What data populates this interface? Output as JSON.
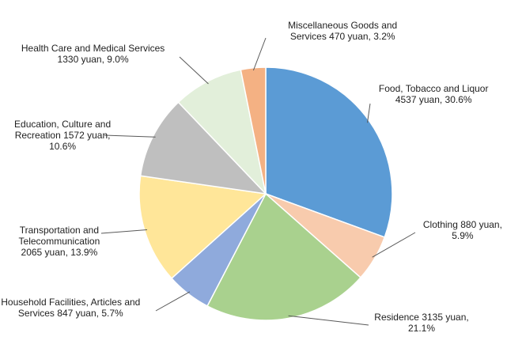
{
  "chart_data": {
    "type": "pie",
    "title": "",
    "slices": [
      {
        "id": "food",
        "lines": [
          "Food, Tobacco and Liquor",
          "4537 yuan,  30.6%"
        ],
        "value": 4537,
        "percent": 30.6,
        "color": "#5b9bd5"
      },
      {
        "id": "clothing",
        "lines": [
          "Clothing 880 yuan,",
          "5.9%"
        ],
        "value": 880,
        "percent": 5.9,
        "color": "#f8cbad"
      },
      {
        "id": "residence",
        "lines": [
          "Residence 3135 yuan,",
          "21.1%"
        ],
        "value": 3135,
        "percent": 21.1,
        "color": "#a9d18e"
      },
      {
        "id": "household",
        "lines": [
          "Household Facilities, Articles and",
          "Services 847 yuan,  5.7%"
        ],
        "value": 847,
        "percent": 5.7,
        "color": "#8faadc"
      },
      {
        "id": "transport",
        "lines": [
          "Transportation and",
          "Telecommunication",
          "2065 yuan,  13.9%"
        ],
        "value": 2065,
        "percent": 13.9,
        "color": "#ffe699"
      },
      {
        "id": "education",
        "lines": [
          "Education, Culture and",
          "Recreation 1572 yuan,",
          "10.6%"
        ],
        "value": 1572,
        "percent": 10.6,
        "color": "#bfbfbf"
      },
      {
        "id": "health",
        "lines": [
          "Health Care and Medical Services",
          "1330 yuan,  9.0%"
        ],
        "value": 1330,
        "percent": 9.0,
        "color": "#e2efda"
      },
      {
        "id": "misc",
        "lines": [
          "Miscellaneous Goods and",
          "Services 470 yuan,  3.2%"
        ],
        "value": 470,
        "percent": 3.2,
        "color": "#f4b183"
      }
    ]
  }
}
